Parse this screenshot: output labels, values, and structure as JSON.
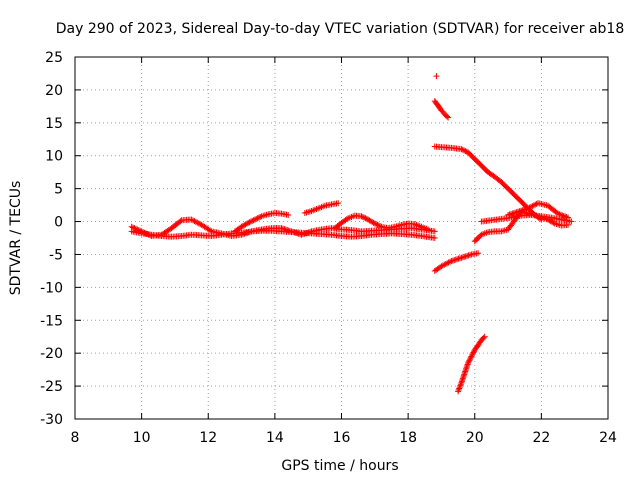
{
  "chart_data": {
    "type": "scatter",
    "title": "Day 290 of 2023, Sidereal Day-to-day VTEC variation (SDTVAR) for receiver ab18",
    "xlabel": "GPS time / hours",
    "ylabel": "SDTVAR / TECUs",
    "xlim": [
      8,
      24
    ],
    "ylim": [
      -30,
      25
    ],
    "xticks": [
      8,
      10,
      12,
      14,
      16,
      18,
      20,
      22,
      24
    ],
    "yticks": [
      -30,
      -25,
      -20,
      -15,
      -10,
      -5,
      0,
      5,
      10,
      15,
      20,
      25
    ],
    "grid": true,
    "marker": "+",
    "marker_color": "#ff0000",
    "series": [
      {
        "x": [
          9.7,
          10.0,
          10.3,
          10.6,
          10.9,
          11.2,
          11.5,
          11.8,
          12.1,
          12.4,
          12.7,
          13.0,
          13.3,
          13.6,
          13.9,
          14.2,
          14.5,
          14.8,
          15.1,
          15.4,
          15.7,
          16.0,
          16.3,
          16.6,
          16.9,
          17.2,
          17.5,
          17.8,
          18.1,
          18.4,
          18.8
        ],
        "y": [
          -1.5,
          -1.8,
          -2.0,
          -2.2,
          -2.3,
          -2.2,
          -2.0,
          -2.1,
          -2.2,
          -2.0,
          -1.8,
          -1.7,
          -1.5,
          -1.4,
          -1.4,
          -1.5,
          -1.6,
          -1.7,
          -1.8,
          -1.9,
          -2.0,
          -2.2,
          -2.3,
          -2.2,
          -2.0,
          -1.9,
          -1.8,
          -1.9,
          -2.0,
          -2.2,
          -2.5
        ]
      },
      {
        "x": [
          9.7,
          10.0,
          10.3,
          10.6,
          10.9,
          11.2,
          11.5,
          11.8,
          12.1,
          12.4,
          12.7,
          13.0,
          13.3,
          13.6,
          13.9,
          14.2,
          14.5,
          14.8,
          15.1,
          15.4,
          15.7,
          16.0,
          16.3,
          16.6,
          16.9,
          17.2,
          17.5,
          17.8,
          18.1,
          18.4,
          18.8
        ],
        "y": [
          -0.8,
          -1.5,
          -2.2,
          -2.0,
          -1.0,
          0.2,
          0.3,
          -0.5,
          -1.5,
          -1.8,
          -2.2,
          -2.0,
          -1.5,
          -1.2,
          -1.0,
          -1.0,
          -1.5,
          -2.0,
          -1.5,
          -1.2,
          -1.0,
          -1.2,
          -1.3,
          -1.5,
          -1.4,
          -1.3,
          -1.2,
          -1.1,
          -1.0,
          -1.2,
          -1.5
        ]
      },
      {
        "x": [
          12.8,
          13.0,
          13.2,
          13.4,
          13.6,
          13.8,
          14.0,
          14.2,
          14.4
        ],
        "y": [
          -1.5,
          -0.8,
          -0.2,
          0.3,
          0.8,
          1.1,
          1.3,
          1.2,
          1.0
        ]
      },
      {
        "x": [
          14.9,
          15.1,
          15.3,
          15.5,
          15.7,
          15.9
        ],
        "y": [
          1.3,
          1.6,
          2.0,
          2.4,
          2.6,
          2.8
        ]
      },
      {
        "x": [
          15.8,
          16.0,
          16.2,
          16.4,
          16.6,
          16.8,
          17.0,
          17.2,
          17.4,
          17.6,
          17.8,
          18.0,
          18.2,
          18.4,
          18.6
        ],
        "y": [
          -1.0,
          -0.2,
          0.5,
          0.9,
          0.8,
          0.3,
          -0.3,
          -0.8,
          -1.0,
          -0.8,
          -0.5,
          -0.3,
          -0.4,
          -0.8,
          -1.2
        ]
      },
      {
        "x": [
          18.8,
          18.9,
          19.0,
          19.1,
          19.2
        ],
        "y": [
          18.3,
          17.6,
          16.9,
          16.3,
          15.8
        ]
      },
      {
        "x": [
          18.85
        ],
        "y": [
          22.1
        ]
      },
      {
        "x": [
          18.8,
          19.0,
          19.3,
          19.6,
          19.8,
          20.0,
          20.2,
          20.4,
          20.6,
          20.8,
          21.0,
          21.2,
          21.4,
          21.6,
          21.8,
          22.0
        ],
        "y": [
          11.4,
          11.3,
          11.2,
          11.0,
          10.5,
          9.5,
          8.5,
          7.5,
          6.8,
          6.0,
          5.0,
          4.0,
          3.0,
          2.0,
          1.0,
          0.3
        ]
      },
      {
        "x": [
          18.8,
          19.0,
          19.3,
          19.6,
          19.9,
          20.1
        ],
        "y": [
          -7.5,
          -6.8,
          -6.0,
          -5.5,
          -5.0,
          -4.8
        ]
      },
      {
        "x": [
          19.5,
          19.6,
          19.7,
          19.8,
          19.9,
          20.0,
          20.1,
          20.2,
          20.3
        ],
        "y": [
          -25.8,
          -24.5,
          -23.0,
          -21.5,
          -20.5,
          -19.5,
          -18.8,
          -18.0,
          -17.5
        ]
      },
      {
        "x": [
          20.0,
          20.2,
          20.4,
          20.6,
          20.8,
          21.0,
          21.2,
          21.4,
          21.6,
          21.8,
          22.0,
          22.2,
          22.4,
          22.6,
          22.8
        ],
        "y": [
          -3.0,
          -2.0,
          -1.6,
          -1.5,
          -1.5,
          -1.2,
          0.2,
          1.5,
          1.2,
          1.0,
          0.6,
          0.3,
          -0.3,
          -0.6,
          -0.5
        ]
      },
      {
        "x": [
          20.2,
          20.5,
          20.8,
          21.1,
          21.4,
          21.7,
          22.0,
          22.3,
          22.6,
          22.9
        ],
        "y": [
          0.0,
          0.2,
          0.4,
          0.6,
          0.9,
          1.0,
          0.8,
          0.6,
          0.3,
          0.0
        ]
      },
      {
        "x": [
          21.0,
          21.3,
          21.6,
          21.9,
          22.2,
          22.5,
          22.8
        ],
        "y": [
          1.0,
          1.5,
          2.0,
          2.8,
          2.4,
          1.2,
          0.6
        ]
      }
    ]
  }
}
